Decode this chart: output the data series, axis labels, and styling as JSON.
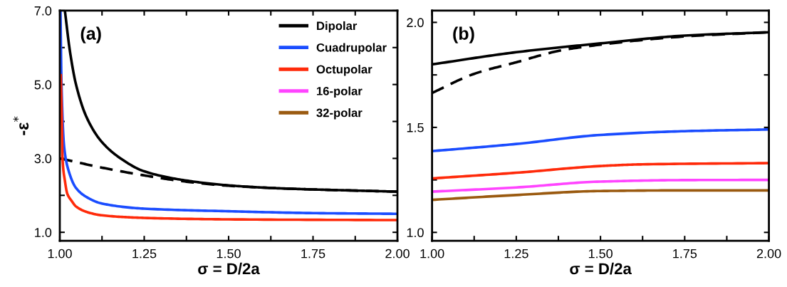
{
  "chart_data": [
    {
      "type": "line",
      "xlabel": "σ = D/2a",
      "ylabel": "-ε$^{*}$",
      "annotations": [
        "(a)"
      ],
      "legend": "top right",
      "line_style": "solid",
      "marker": "none",
      "grid": false,
      "xlim": [
        1.0,
        2.0
      ],
      "ylim": [
        0.77,
        7.0
      ],
      "xticks": [
        {
          "value": 1.0,
          "label": "1.00"
        },
        {
          "value": 1.125,
          "label": null
        },
        {
          "value": 1.25,
          "label": "1.25"
        },
        {
          "value": 1.375,
          "label": null
        },
        {
          "value": 1.5,
          "label": "1.50"
        },
        {
          "value": 1.625,
          "label": null
        },
        {
          "value": 1.75,
          "label": "1.75"
        },
        {
          "value": 1.875,
          "label": null
        },
        {
          "value": 2.0,
          "label": "2.00"
        }
      ],
      "yticks": [
        {
          "value": 1.0,
          "label": "1.0"
        },
        {
          "value": 2.0,
          "label": null
        },
        {
          "value": 3.0,
          "label": "3.0"
        },
        {
          "value": 4.0,
          "label": null
        },
        {
          "value": 5.0,
          "label": "5.0"
        },
        {
          "value": 6.0,
          "label": null
        },
        {
          "value": 7.0,
          "label": "7.0"
        }
      ],
      "series": [
        {
          "name": "Dipolar",
          "color": "#000000",
          "x": [
            1.015,
            1.03,
            1.048,
            1.08,
            1.124,
            1.18,
            1.25,
            1.375,
            1.5,
            1.625,
            1.75,
            1.875,
            2.0
          ],
          "values": [
            7.0,
            5.9,
            5.0,
            4.1,
            3.45,
            3.0,
            2.65,
            2.4,
            2.27,
            2.2,
            2.16,
            2.13,
            2.1
          ]
        },
        {
          "color": "#000000",
          "line_style": "dashed",
          "x": [
            1.0,
            1.125,
            1.25,
            1.375,
            1.5,
            1.75,
            2.0
          ],
          "values": [
            3.0,
            2.75,
            2.54,
            2.37,
            2.26,
            2.16,
            2.1
          ]
        },
        {
          "name": "Cuadrupolar",
          "color": "#1a4cff",
          "x": [
            1.002,
            1.005,
            1.013,
            1.025,
            1.048,
            1.08,
            1.124,
            1.25,
            1.5,
            1.75,
            2.0
          ],
          "values": [
            7.0,
            5.0,
            3.3,
            2.7,
            2.2,
            1.95,
            1.78,
            1.64,
            1.57,
            1.52,
            1.5
          ]
        },
        {
          "name": "Octupolar",
          "color": "#ff2a0a",
          "x": [
            1.003,
            1.006,
            1.008,
            1.015,
            1.022,
            1.035,
            1.048,
            1.08,
            1.124,
            1.25,
            1.5,
            2.0
          ],
          "values": [
            5.25,
            4.0,
            3.0,
            2.4,
            2.05,
            1.85,
            1.7,
            1.55,
            1.46,
            1.39,
            1.35,
            1.33
          ]
        },
        {
          "name": "16-polar",
          "color": "#ff44ff"
        },
        {
          "name": "32-polar",
          "color": "#9a5a10"
        }
      ]
    },
    {
      "type": "line",
      "xlabel": "σ = D/2a",
      "annotations": [
        "(b)"
      ],
      "line_style": "solid",
      "marker": "none",
      "grid": false,
      "xlim": [
        1.0,
        2.0
      ],
      "ylim": [
        0.96,
        2.056
      ],
      "xticks": [
        {
          "value": 1.0,
          "label": "1.00"
        },
        {
          "value": 1.125,
          "label": null
        },
        {
          "value": 1.25,
          "label": "1.25"
        },
        {
          "value": 1.375,
          "label": null
        },
        {
          "value": 1.5,
          "label": "1.50"
        },
        {
          "value": 1.625,
          "label": null
        },
        {
          "value": 1.75,
          "label": "1.75"
        },
        {
          "value": 1.875,
          "label": null
        },
        {
          "value": 2.0,
          "label": "2.00"
        }
      ],
      "yticks": [
        {
          "value": 1.0,
          "label": "1.0"
        },
        {
          "value": 1.25,
          "label": null
        },
        {
          "value": 1.5,
          "label": "1.5"
        },
        {
          "value": 1.75,
          "label": null
        },
        {
          "value": 2.0,
          "label": "2.0"
        }
      ],
      "series": [
        {
          "color": "#000000",
          "x": [
            1.0,
            1.25,
            1.5,
            1.75,
            2.0
          ],
          "values": [
            1.8,
            1.858,
            1.9,
            1.937,
            1.953
          ]
        },
        {
          "color": "#000000",
          "line_style": "dashed",
          "x": [
            1.0,
            1.125,
            1.25,
            1.375,
            1.5,
            1.75,
            2.0
          ],
          "values": [
            1.664,
            1.755,
            1.81,
            1.864,
            1.894,
            1.933,
            1.953
          ]
        },
        {
          "color": "#1a4cff",
          "x": [
            1.0,
            1.25,
            1.5,
            1.75,
            2.0
          ],
          "values": [
            1.387,
            1.421,
            1.464,
            1.482,
            1.49
          ]
        },
        {
          "color": "#ff2a0a",
          "x": [
            1.0,
            1.25,
            1.5,
            1.625,
            2.0
          ],
          "values": [
            1.257,
            1.284,
            1.316,
            1.324,
            1.33
          ]
        },
        {
          "color": "#ff44ff",
          "x": [
            1.0,
            1.25,
            1.5,
            1.75,
            2.0
          ],
          "values": [
            1.194,
            1.214,
            1.242,
            1.249,
            1.25
          ]
        },
        {
          "color": "#9a5a10",
          "x": [
            1.0,
            1.25,
            1.5,
            1.75,
            2.0
          ],
          "values": [
            1.155,
            1.178,
            1.197,
            1.2,
            1.2
          ]
        }
      ]
    }
  ]
}
